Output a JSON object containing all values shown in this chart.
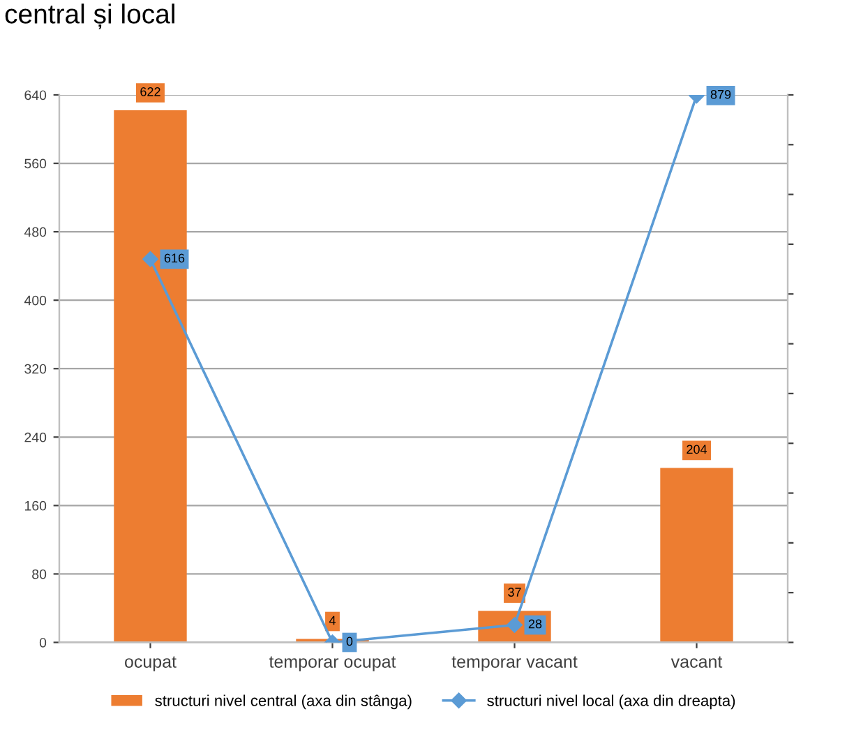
{
  "chart_data": {
    "type": "bar",
    "title": "central și local",
    "categories": [
      "ocupat",
      "temporar ocupat",
      "temporar vacant",
      "vacant"
    ],
    "series": [
      {
        "name": "structuri nivel central (axa din stânga)",
        "color": "#ed7d31",
        "values": [
          622,
          4,
          37,
          204
        ]
      },
      {
        "name": "structuri nivel local (axa din dreapta)",
        "type": "line",
        "axis": "y2",
        "color": "#5b9bd5",
        "marker": "diamond",
        "values": [
          616,
          0,
          28,
          879
        ]
      }
    ],
    "ylim": [
      0,
      640
    ],
    "yticks": [
      0,
      80,
      160,
      240,
      320,
      400,
      480,
      560,
      640
    ],
    "y2lim": [
      0,
      880
    ],
    "y2ticks": [
      {
        "value": 0,
        "label": null
      },
      {
        "value": 80,
        "label": null
      },
      {
        "value": 160,
        "label": null
      },
      {
        "value": 240,
        "label": null
      },
      {
        "value": 320,
        "label": null
      },
      {
        "value": 400,
        "label": null
      },
      {
        "value": 480,
        "label": null
      },
      {
        "value": 560,
        "label": null
      },
      {
        "value": 640,
        "label": null
      },
      {
        "value": 720,
        "label": null
      },
      {
        "value": 800,
        "label": null
      },
      {
        "value": 880,
        "label": null
      }
    ],
    "grid": "y",
    "legend": "bottom",
    "data_labels": true
  }
}
